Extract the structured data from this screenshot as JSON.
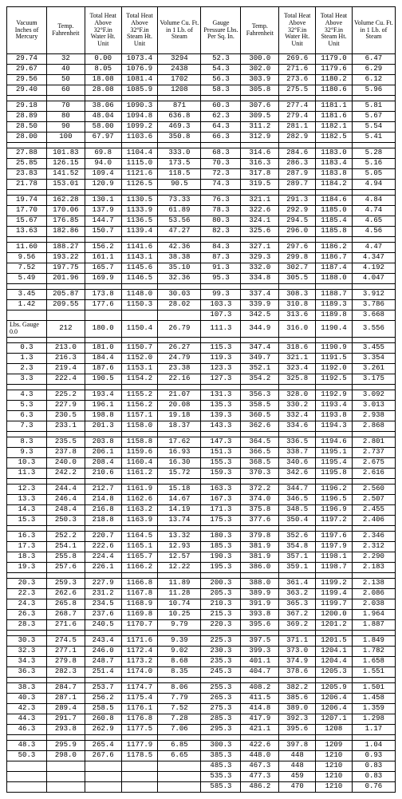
{
  "headers": [
    "Vacuum Inches of Mercury",
    "Temp. Fahrenheit",
    "Total Heat Above 32°F.in Water Ht. Unit",
    "Total Heat Above 32°F.in Steam Ht. Unit",
    "Volume Cu. Ft. in 1 Lb. of Steam",
    "Gauge Pressure Lbs. Per Sq. In.",
    "Temp. Fahrenheit",
    "Total Heat Above 32°F.in Water Ht. Unit",
    "Total Heat Above 32°F.in Steam Ht. Unit",
    "Volume Cu. Ft. in 1 Lb. of Steam"
  ],
  "groups": [
    [
      [
        "29.74",
        "32",
        "0.00",
        "1073.4",
        "3294",
        "52.3",
        "300.0",
        "269.6",
        "1179.0",
        "6.47"
      ],
      [
        "29.67",
        "40",
        "8.05",
        "1076.9",
        "2438",
        "54.3",
        "302.0",
        "271.6",
        "1179.6",
        "6.29"
      ],
      [
        "29.56",
        "50",
        "18.08",
        "1081.4",
        "1702",
        "56.3",
        "303.9",
        "273.6",
        "1180.2",
        "6.12"
      ],
      [
        "29.40",
        "60",
        "28.08",
        "1085.9",
        "1208",
        "58.3",
        "305.8",
        "275.5",
        "1180.6",
        "5.96"
      ]
    ],
    [
      [
        "29.18",
        "70",
        "38.06",
        "1090.3",
        "871",
        "60.3",
        "307.6",
        "277.4",
        "1181.1",
        "5.81"
      ],
      [
        "28.89",
        "80",
        "48.04",
        "1094.8",
        "636.8",
        "62.3",
        "309.5",
        "279.4",
        "1181.6",
        "5.67"
      ],
      [
        "28.50",
        "90",
        "58.00",
        "1099.2",
        "469.3",
        "64.3",
        "311.2",
        "281.1",
        "1182.1",
        "5.54"
      ],
      [
        "28.00",
        "100",
        "67.97",
        "1103.6",
        "350.8",
        "66.3",
        "312.9",
        "282.9",
        "1182.5",
        "5.41"
      ]
    ],
    [
      [
        "27.88",
        "101.83",
        "69.8",
        "1104.4",
        "333.0",
        "68.3",
        "314.6",
        "284.6",
        "1183.0",
        "5.28"
      ],
      [
        "25.85",
        "126.15",
        "94.0",
        "1115.0",
        "173.5",
        "70.3",
        "316.3",
        "286.3",
        "1183.4",
        "5.16"
      ],
      [
        "23.83",
        "141.52",
        "109.4",
        "1121.6",
        "118.5",
        "72.3",
        "317.8",
        "287.9",
        "1183.8",
        "5.05"
      ],
      [
        "21.78",
        "153.01",
        "120.9",
        "1126.5",
        "90.5",
        "74.3",
        "319.5",
        "289.7",
        "1184.2",
        "4.94"
      ]
    ],
    [
      [
        "19.74",
        "162.28",
        "130.1",
        "1130.5",
        "73.33",
        "76.3",
        "321.1",
        "291.3",
        "1184.6",
        "4.84"
      ],
      [
        "17.70",
        "170.06",
        "137.9",
        "1133.9",
        "61.89",
        "78.3",
        "322.6",
        "292.9",
        "1185.0",
        "4.74"
      ],
      [
        "15.67",
        "176.85",
        "144.7",
        "1136.5",
        "53.56",
        "80.3",
        "324.1",
        "294.5",
        "1185.4",
        "4.65"
      ],
      [
        "13.63",
        "182.86",
        "150.7",
        "1139.4",
        "47.27",
        "82.3",
        "325.6",
        "296.0",
        "1185.8",
        "4.56"
      ]
    ],
    [
      [
        "11.60",
        "188.27",
        "156.2",
        "1141.6",
        "42.36",
        "84.3",
        "327.1",
        "297.6",
        "1186.2",
        "4.47"
      ],
      [
        "9.56",
        "193.22",
        "161.1",
        "1143.1",
        "38.38",
        "87.3",
        "329.3",
        "299.8",
        "1186.7",
        "4.347"
      ],
      [
        "7.52",
        "197.75",
        "165.7",
        "1145.6",
        "35.10",
        "91.3",
        "332.0",
        "302.7",
        "1187.4",
        "4.192"
      ],
      [
        "5.49",
        "201.96",
        "169.9",
        "1146.5",
        "32.36",
        "95.3",
        "334.8",
        "305.5",
        "1188.0",
        "4.047"
      ]
    ],
    [
      [
        "3.45",
        "205.87",
        "173.8",
        "1148.0",
        "30.03",
        "99.3",
        "337.4",
        "308.3",
        "1188.7",
        "3.912"
      ],
      [
        "1.42",
        "209.55",
        "177.6",
        "1150.3",
        "28.02",
        "103.3",
        "339.9",
        "310.8",
        "1189.3",
        "3.786"
      ],
      [
        "",
        "",
        "",
        "",
        "",
        "107.3",
        "342.5",
        "313.6",
        "1189.8",
        "3.668"
      ],
      [
        "Lbs. Gauge 0.0",
        "212",
        "180.0",
        "1150.4",
        "26.79",
        "111.3",
        "344.9",
        "316.0",
        "1190.4",
        "3.556"
      ]
    ],
    [
      [
        "0.3",
        "213.0",
        "181.0",
        "1150.7",
        "26.27",
        "115.3",
        "347.4",
        "318.6",
        "1190.9",
        "3.455"
      ],
      [
        "1.3",
        "216.3",
        "184.4",
        "1152.0",
        "24.79",
        "119.3",
        "349.7",
        "321.1",
        "1191.5",
        "3.354"
      ],
      [
        "2.3",
        "219.4",
        "187.6",
        "1153.1",
        "23.38",
        "123.3",
        "352.1",
        "323.4",
        "1192.0",
        "3.261"
      ],
      [
        "3.3",
        "222.4",
        "190.5",
        "1154.2",
        "22.16",
        "127.3",
        "354.2",
        "325.8",
        "1192.5",
        "3.175"
      ]
    ],
    [
      [
        "4.3",
        "225.2",
        "193.4",
        "1155.2",
        "21.07",
        "131.3",
        "356.3",
        "328.0",
        "1192.9",
        "3.092"
      ],
      [
        "5.3",
        "227.9",
        "196.1",
        "1156.2",
        "20.08",
        "135.3",
        "358.5",
        "330.2",
        "1193.4",
        "3.013"
      ],
      [
        "6.3",
        "230.5",
        "198.8",
        "1157.1",
        "19.18",
        "139.3",
        "360.5",
        "332.4",
        "1193.8",
        "2.938"
      ],
      [
        "7.3",
        "233.1",
        "201.3",
        "1158.0",
        "18.37",
        "143.3",
        "362.6",
        "334.6",
        "1194.3",
        "2.868"
      ]
    ],
    [
      [
        "8.3",
        "235.5",
        "203.8",
        "1158.8",
        "17.62",
        "147.3",
        "364.5",
        "336.5",
        "1194.6",
        "2.801"
      ],
      [
        "9.3",
        "237.8",
        "206.1",
        "1159.6",
        "16.93",
        "151.3",
        "366.5",
        "338.7",
        "1195.1",
        "2.737"
      ],
      [
        "10.3",
        "240.0",
        "208.4",
        "1160.4",
        "16.30",
        "155.3",
        "368.5",
        "340.6",
        "1195.4",
        "2.675"
      ],
      [
        "11.3",
        "242.2",
        "210.6",
        "1161.2",
        "15.72",
        "159.3",
        "370.3",
        "342.6",
        "1195.8",
        "2.616"
      ]
    ],
    [
      [
        "12.3",
        "244.4",
        "212.7",
        "1161.9",
        "15.18",
        "163.3",
        "372.2",
        "344.7",
        "1196.2",
        "2.560"
      ],
      [
        "13.3",
        "246.4",
        "214.8",
        "1162.6",
        "14.67",
        "167.3",
        "374.0",
        "346.5",
        "1196.5",
        "2.507"
      ],
      [
        "14.3",
        "248.4",
        "216.8",
        "1163.2",
        "14.19",
        "171.3",
        "375.8",
        "348.5",
        "1196.9",
        "2.455"
      ],
      [
        "15.3",
        "250.3",
        "218.8",
        "1163.9",
        "13.74",
        "175.3",
        "377.6",
        "350.4",
        "1197.2",
        "2.406"
      ]
    ],
    [
      [
        "16.3",
        "252.2",
        "220.7",
        "1164.5",
        "13.32",
        "180.3",
        "379.8",
        "352.6",
        "1197.6",
        "2.346"
      ],
      [
        "17.3",
        "254.1",
        "222.6",
        "1165.1",
        "12.93",
        "185.3",
        "381.9",
        "354.8",
        "1197.9",
        "2.312"
      ],
      [
        "18.3",
        "255.8",
        "224.4",
        "1165.7",
        "12.57",
        "190.3",
        "381.9",
        "357.1",
        "1198.1",
        "2.290"
      ],
      [
        "19.3",
        "257.6",
        "226.1",
        "1166.2",
        "12.22",
        "195.3",
        "386.0",
        "359.1",
        "1198.7",
        "2.183"
      ]
    ],
    [
      [
        "20.3",
        "259.3",
        "227.9",
        "1166.8",
        "11.89",
        "200.3",
        "388.0",
        "361.4",
        "1199.2",
        "2.138"
      ],
      [
        "22.3",
        "262.6",
        "231.2",
        "1167.8",
        "11.28",
        "205.3",
        "389.9",
        "363.2",
        "1199.4",
        "2.086"
      ],
      [
        "24.3",
        "265.8",
        "234.5",
        "1168.9",
        "10.74",
        "210.3",
        "391.9",
        "365.3",
        "1199.7",
        "2.038"
      ],
      [
        "26.3",
        "268.7",
        "237.6",
        "1169.8",
        "10.25",
        "215.3",
        "393.8",
        "367.2",
        "1200.0",
        "1.964"
      ],
      [
        "28.3",
        "271.6",
        "240.5",
        "1170.7",
        "9.79",
        "220.3",
        "395.6",
        "369.2",
        "1201.2",
        "1.887"
      ]
    ],
    [
      [
        "30.3",
        "274.5",
        "243.4",
        "1171.6",
        "9.39",
        "225.3",
        "397.5",
        "371.1",
        "1201.5",
        "1.849"
      ],
      [
        "32.3",
        "277.1",
        "246.0",
        "1172.4",
        "9.02",
        "230.3",
        "399.3",
        "373.0",
        "1204.1",
        "1.782"
      ],
      [
        "34.3",
        "279.8",
        "248.7",
        "1173.2",
        "8.68",
        "235.3",
        "401.1",
        "374.9",
        "1204.4",
        "1.658"
      ],
      [
        "36.3",
        "282.3",
        "251.4",
        "1174.0",
        "8.35",
        "245.3",
        "404.7",
        "378.6",
        "1205.3",
        "1.551"
      ]
    ],
    [
      [
        "38.3",
        "284.7",
        "253.7",
        "1174.7",
        "8.06",
        "255.3",
        "408.2",
        "382.2",
        "1205.9",
        "1.501"
      ],
      [
        "40.3",
        "287.1",
        "256.2",
        "1175.4",
        "7.79",
        "265.3",
        "411.5",
        "385.6",
        "1206.4",
        "1.458"
      ],
      [
        "42.3",
        "289.4",
        "258.5",
        "1176.1",
        "7.52",
        "275.3",
        "414.8",
        "389.0",
        "1206.4",
        "1.359"
      ],
      [
        "44.3",
        "291.7",
        "260.8",
        "1176.8",
        "7.28",
        "285.3",
        "417.9",
        "392.3",
        "1207.1",
        "1.298"
      ],
      [
        "46.3",
        "293.8",
        "262.9",
        "1177.5",
        "7.06",
        "295.3",
        "421.1",
        "395.6",
        "1208",
        "1.17"
      ]
    ],
    [
      [
        "48.3",
        "295.9",
        "265.4",
        "1177.9",
        "6.85",
        "300.3",
        "422.6",
        "397.8",
        "1209",
        "1.04"
      ],
      [
        "50.3",
        "298.0",
        "267.6",
        "1178.5",
        "6.65",
        "385.3",
        "448.0",
        "448",
        "1210",
        "0.93"
      ],
      [
        "",
        "",
        "",
        "",
        "",
        "485.3",
        "467.3",
        "448",
        "1210",
        "0.83"
      ],
      [
        "",
        "",
        "",
        "",
        "",
        "535.3",
        "477.3",
        "459",
        "1210",
        "0.83"
      ],
      [
        "",
        "",
        "",
        "",
        "",
        "585.3",
        "486.2",
        "470",
        "1210",
        "0.76"
      ]
    ]
  ],
  "style": {
    "border_color": "#000000",
    "bg": "#ffffff",
    "font": "Times New Roman",
    "data_font": "Courier New",
    "header_fs": 8,
    "cell_fs": 9
  }
}
